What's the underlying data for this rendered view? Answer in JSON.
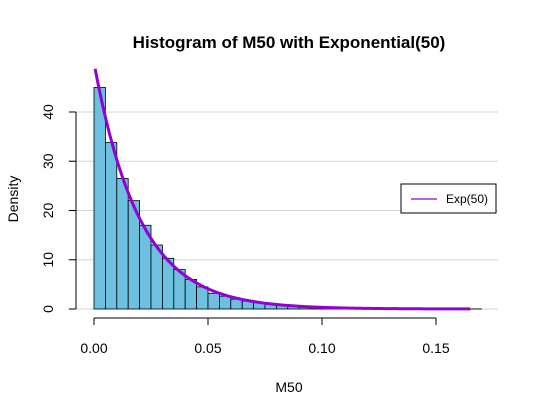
{
  "chart_data": {
    "type": "bar",
    "title": "Histogram of M50 with Exponential(50)",
    "xlabel": "M50",
    "ylabel": "Density",
    "xlim": [
      0,
      0.17
    ],
    "ylim": [
      0,
      45
    ],
    "xticks": [
      0.0,
      0.05,
      0.1,
      0.15
    ],
    "xtick_labels": [
      "0.00",
      "0.05",
      "0.10",
      "0.15"
    ],
    "yticks": [
      0,
      10,
      20,
      30,
      40
    ],
    "ytick_labels": [
      "0",
      "10",
      "20",
      "30",
      "40"
    ],
    "grid": "horizontal",
    "bin_width": 0.005,
    "bin_start": 0.0,
    "densities": [
      45.0,
      33.8,
      26.5,
      22.0,
      17.0,
      13.0,
      10.3,
      8.0,
      6.0,
      4.5,
      3.2,
      2.6,
      2.0,
      1.6,
      1.3,
      1.0,
      0.8,
      0.6,
      0.45,
      0.35,
      0.27,
      0.2,
      0.15,
      0.12,
      0.1,
      0.08,
      0.06,
      0.05,
      0.04,
      0.03,
      0.03,
      0.02,
      0.02,
      0.02
    ],
    "curve": {
      "name": "Exp(50)",
      "rate": 50,
      "x_range": [
        0.0005,
        0.165
      ],
      "color": "#9400d3"
    },
    "legend": {
      "position": "right",
      "entries": [
        "Exp(50)"
      ]
    },
    "bar_color": "#6ec0e0",
    "bar_edge": "#000000"
  }
}
